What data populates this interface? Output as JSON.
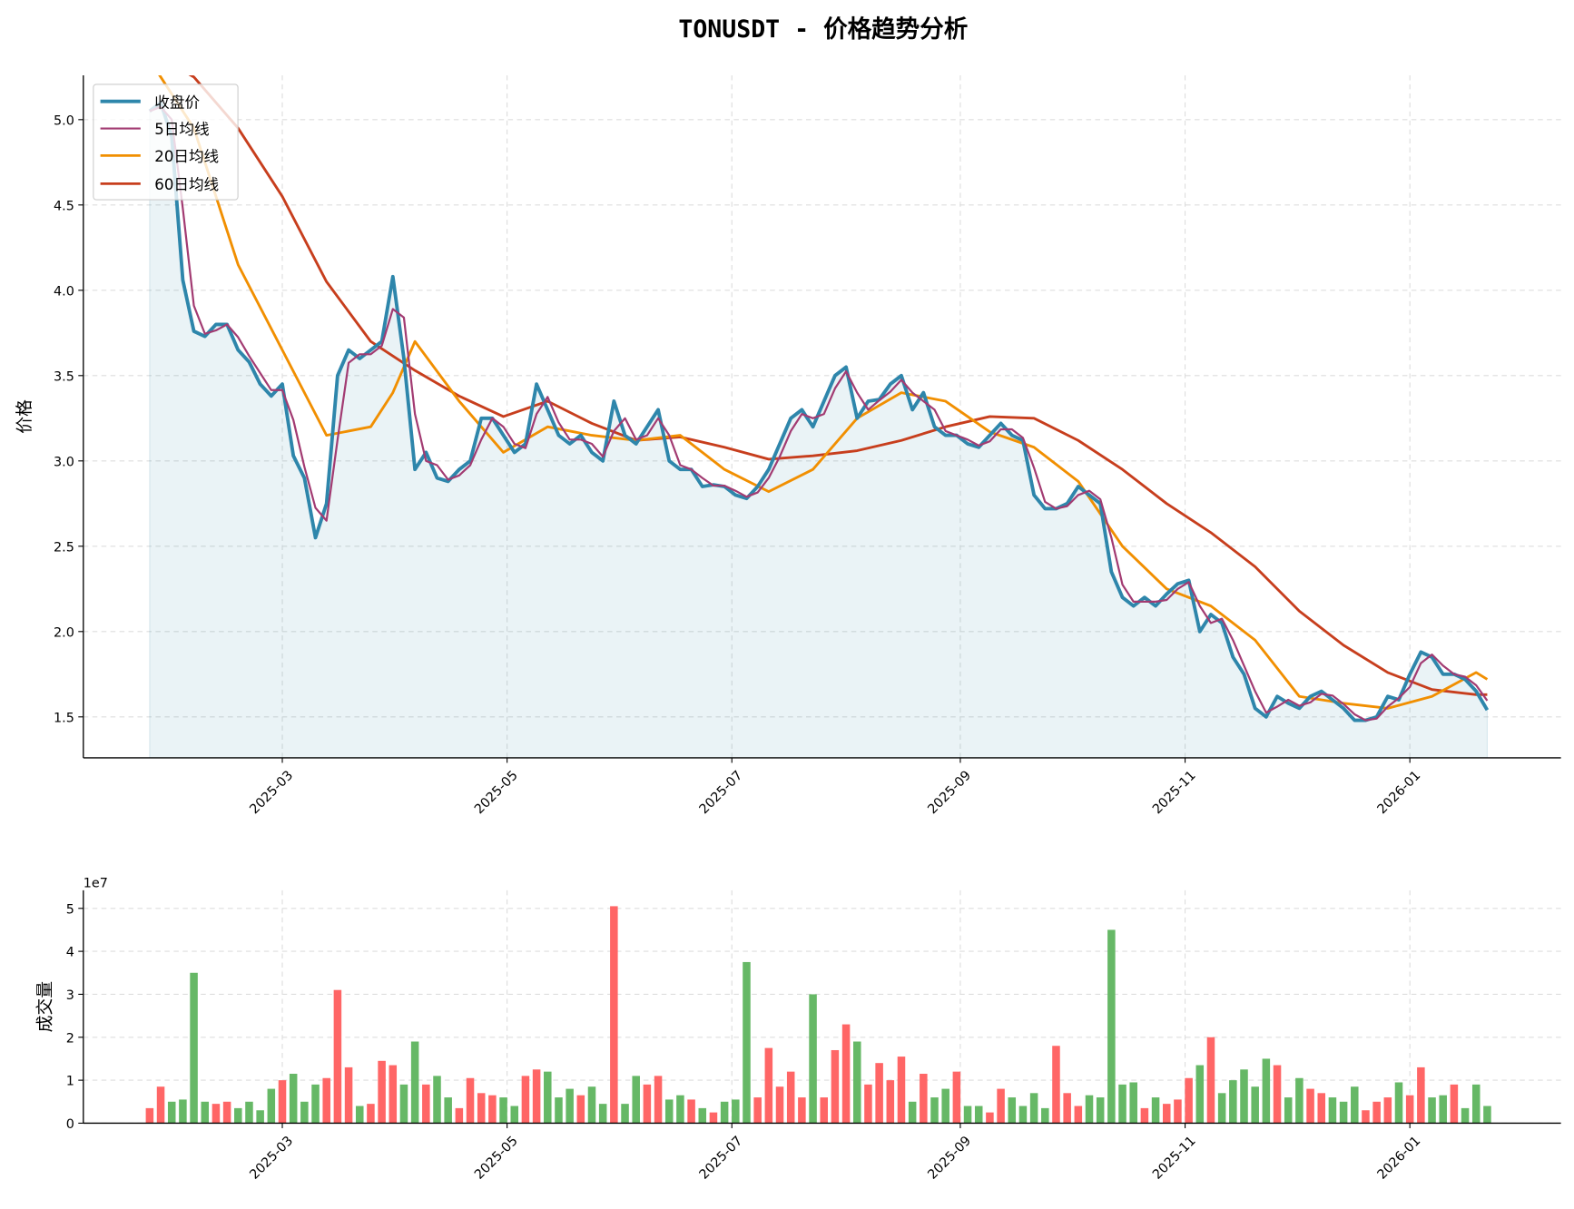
{
  "chart_data": [
    {
      "type": "line",
      "title": "TONUSDT - 价格趋势分析",
      "ylabel": "价格",
      "xlabel": "",
      "xlim": [
        "2025-01-06",
        "2026-02-11"
      ],
      "ylim": [
        1.26,
        5.26
      ],
      "grid": true,
      "legend_placement": "top-left",
      "yticks": [
        "1.5",
        "2.0",
        "2.5",
        "3.0",
        "3.5",
        "4.0",
        "4.5",
        "5.0"
      ],
      "xticks": [
        "2025-03",
        "2025-05",
        "2025-07",
        "2025-09",
        "2025-11",
        "2026-01"
      ],
      "colors": {
        "close": "#2e86ab",
        "ma5": "#a23b72",
        "ma20": "#f18f01",
        "ma60": "#c73e1d",
        "fill": "#2e86ab"
      },
      "legend": [
        "收盘价",
        "5日均线",
        "20日均线",
        "60日均线"
      ],
      "ma20": [
        [
          "2025-01-24",
          5.35
        ],
        [
          "2025-02-05",
          4.95
        ],
        [
          "2025-02-17",
          4.15
        ],
        [
          "2025-03-01",
          3.65
        ],
        [
          "2025-03-13",
          3.15
        ],
        [
          "2025-03-25",
          3.2
        ],
        [
          "2025-03-31",
          3.4
        ],
        [
          "2025-04-06",
          3.7
        ],
        [
          "2025-04-18",
          3.35
        ],
        [
          "2025-04-30",
          3.05
        ],
        [
          "2025-05-12",
          3.2
        ],
        [
          "2025-05-24",
          3.15
        ],
        [
          "2025-06-05",
          3.12
        ],
        [
          "2025-06-17",
          3.15
        ],
        [
          "2025-06-29",
          2.95
        ],
        [
          "2025-07-11",
          2.82
        ],
        [
          "2025-07-23",
          2.95
        ],
        [
          "2025-08-04",
          3.25
        ],
        [
          "2025-08-16",
          3.4
        ],
        [
          "2025-08-28",
          3.35
        ],
        [
          "2025-09-09",
          3.17
        ],
        [
          "2025-09-21",
          3.08
        ],
        [
          "2025-10-03",
          2.88
        ],
        [
          "2025-10-15",
          2.5
        ],
        [
          "2025-10-27",
          2.25
        ],
        [
          "2025-11-08",
          2.15
        ],
        [
          "2025-11-20",
          1.95
        ],
        [
          "2025-12-02",
          1.62
        ],
        [
          "2025-12-14",
          1.58
        ],
        [
          "2025-12-26",
          1.55
        ],
        [
          "2026-01-07",
          1.62
        ],
        [
          "2026-01-19",
          1.76
        ],
        [
          "2026-01-22",
          1.72
        ]
      ],
      "ma60": [
        [
          "2025-01-24",
          5.4
        ],
        [
          "2025-02-05",
          5.25
        ],
        [
          "2025-02-17",
          4.95
        ],
        [
          "2025-03-01",
          4.55
        ],
        [
          "2025-03-13",
          4.05
        ],
        [
          "2025-03-25",
          3.7
        ],
        [
          "2025-04-06",
          3.53
        ],
        [
          "2025-04-18",
          3.38
        ],
        [
          "2025-04-30",
          3.26
        ],
        [
          "2025-05-12",
          3.35
        ],
        [
          "2025-05-24",
          3.22
        ],
        [
          "2025-06-05",
          3.12
        ],
        [
          "2025-06-17",
          3.14
        ],
        [
          "2025-06-29",
          3.08
        ],
        [
          "2025-07-11",
          3.01
        ],
        [
          "2025-07-23",
          3.03
        ],
        [
          "2025-08-04",
          3.06
        ],
        [
          "2025-08-16",
          3.12
        ],
        [
          "2025-08-28",
          3.2
        ],
        [
          "2025-09-09",
          3.26
        ],
        [
          "2025-09-21",
          3.25
        ],
        [
          "2025-10-03",
          3.12
        ],
        [
          "2025-10-15",
          2.95
        ],
        [
          "2025-10-27",
          2.75
        ],
        [
          "2025-11-08",
          2.58
        ],
        [
          "2025-11-20",
          2.38
        ],
        [
          "2025-12-02",
          2.12
        ],
        [
          "2025-12-14",
          1.92
        ],
        [
          "2025-12-26",
          1.76
        ],
        [
          "2026-01-07",
          1.66
        ],
        [
          "2026-01-19",
          1.63
        ],
        [
          "2026-01-22",
          1.63
        ]
      ]
    },
    {
      "type": "bar",
      "ylabel": "成交量",
      "offset_label": "1e7",
      "ylim": [
        0,
        5.42
      ],
      "yticks": [
        "0",
        "1",
        "2",
        "3",
        "4",
        "5"
      ],
      "grid": true,
      "colors": {
        "up": "#ff6666",
        "down": "#66b866"
      }
    }
  ],
  "daily": [
    {
      "date": "2025-01-24",
      "close": 5.05,
      "volume": 0.35
    },
    {
      "date": "2025-01-27",
      "close": 5.1,
      "volume": 0.85
    },
    {
      "date": "2025-01-30",
      "close": 4.9,
      "volume": 0.5
    },
    {
      "date": "2025-02-02",
      "close": 4.06,
      "volume": 0.55
    },
    {
      "date": "2025-02-05",
      "close": 3.76,
      "volume": 3.5
    },
    {
      "date": "2025-02-08",
      "close": 3.73,
      "volume": 0.5
    },
    {
      "date": "2025-02-11",
      "close": 3.8,
      "volume": 0.45
    },
    {
      "date": "2025-02-14",
      "close": 3.8,
      "volume": 0.5
    },
    {
      "date": "2025-02-17",
      "close": 3.65,
      "volume": 0.35
    },
    {
      "date": "2025-02-20",
      "close": 3.58,
      "volume": 0.5
    },
    {
      "date": "2025-02-23",
      "close": 3.45,
      "volume": 0.3
    },
    {
      "date": "2025-02-26",
      "close": 3.38,
      "volume": 0.8
    },
    {
      "date": "2025-03-01",
      "close": 3.45,
      "volume": 1.0
    },
    {
      "date": "2025-03-04",
      "close": 3.03,
      "volume": 1.15
    },
    {
      "date": "2025-03-07",
      "close": 2.9,
      "volume": 0.5
    },
    {
      "date": "2025-03-10",
      "close": 2.55,
      "volume": 0.9
    },
    {
      "date": "2025-03-13",
      "close": 2.75,
      "volume": 1.05
    },
    {
      "date": "2025-03-16",
      "close": 3.5,
      "volume": 3.1
    },
    {
      "date": "2025-03-19",
      "close": 3.65,
      "volume": 1.3
    },
    {
      "date": "2025-03-22",
      "close": 3.6,
      "volume": 0.4
    },
    {
      "date": "2025-03-25",
      "close": 3.65,
      "volume": 0.45
    },
    {
      "date": "2025-03-28",
      "close": 3.7,
      "volume": 1.45
    },
    {
      "date": "2025-03-31",
      "close": 4.08,
      "volume": 1.35
    },
    {
      "date": "2025-04-03",
      "close": 3.6,
      "volume": 0.9
    },
    {
      "date": "2025-04-06",
      "close": 2.95,
      "volume": 1.9
    },
    {
      "date": "2025-04-09",
      "close": 3.05,
      "volume": 0.9
    },
    {
      "date": "2025-04-12",
      "close": 2.9,
      "volume": 1.1
    },
    {
      "date": "2025-04-15",
      "close": 2.88,
      "volume": 0.6
    },
    {
      "date": "2025-04-18",
      "close": 2.95,
      "volume": 0.35
    },
    {
      "date": "2025-04-21",
      "close": 3.0,
      "volume": 1.05
    },
    {
      "date": "2025-04-24",
      "close": 3.25,
      "volume": 0.7
    },
    {
      "date": "2025-04-27",
      "close": 3.25,
      "volume": 0.65
    },
    {
      "date": "2025-04-30",
      "close": 3.15,
      "volume": 0.6
    },
    {
      "date": "2025-05-03",
      "close": 3.05,
      "volume": 0.4
    },
    {
      "date": "2025-05-06",
      "close": 3.1,
      "volume": 1.1
    },
    {
      "date": "2025-05-09",
      "close": 3.45,
      "volume": 1.25
    },
    {
      "date": "2025-05-12",
      "close": 3.3,
      "volume": 1.2
    },
    {
      "date": "2025-05-15",
      "close": 3.15,
      "volume": 0.6
    },
    {
      "date": "2025-05-18",
      "close": 3.1,
      "volume": 0.8
    },
    {
      "date": "2025-05-21",
      "close": 3.15,
      "volume": 0.65
    },
    {
      "date": "2025-05-24",
      "close": 3.05,
      "volume": 0.85
    },
    {
      "date": "2025-05-27",
      "close": 3.0,
      "volume": 0.45
    },
    {
      "date": "2025-05-30",
      "close": 3.35,
      "volume": 5.05
    },
    {
      "date": "2025-06-02",
      "close": 3.15,
      "volume": 0.45
    },
    {
      "date": "2025-06-05",
      "close": 3.1,
      "volume": 1.1
    },
    {
      "date": "2025-06-08",
      "close": 3.2,
      "volume": 0.9
    },
    {
      "date": "2025-06-11",
      "close": 3.3,
      "volume": 1.1
    },
    {
      "date": "2025-06-14",
      "close": 3.0,
      "volume": 0.55
    },
    {
      "date": "2025-06-17",
      "close": 2.95,
      "volume": 0.65
    },
    {
      "date": "2025-06-20",
      "close": 2.95,
      "volume": 0.55
    },
    {
      "date": "2025-06-23",
      "close": 2.85,
      "volume": 0.35
    },
    {
      "date": "2025-06-26",
      "close": 2.86,
      "volume": 0.25
    },
    {
      "date": "2025-06-29",
      "close": 2.85,
      "volume": 0.5
    },
    {
      "date": "2025-07-02",
      "close": 2.8,
      "volume": 0.55
    },
    {
      "date": "2025-07-05",
      "close": 2.78,
      "volume": 3.75
    },
    {
      "date": "2025-07-08",
      "close": 2.85,
      "volume": 0.6
    },
    {
      "date": "2025-07-11",
      "close": 2.95,
      "volume": 1.75
    },
    {
      "date": "2025-07-14",
      "close": 3.1,
      "volume": 0.85
    },
    {
      "date": "2025-07-17",
      "close": 3.25,
      "volume": 1.2
    },
    {
      "date": "2025-07-20",
      "close": 3.3,
      "volume": 0.6
    },
    {
      "date": "2025-07-23",
      "close": 3.2,
      "volume": 3.0
    },
    {
      "date": "2025-07-26",
      "close": 3.35,
      "volume": 0.6
    },
    {
      "date": "2025-07-29",
      "close": 3.5,
      "volume": 1.7
    },
    {
      "date": "2025-08-01",
      "close": 3.55,
      "volume": 2.3
    },
    {
      "date": "2025-08-04",
      "close": 3.25,
      "volume": 1.9
    },
    {
      "date": "2025-08-07",
      "close": 3.35,
      "volume": 0.9
    },
    {
      "date": "2025-08-10",
      "close": 3.36,
      "volume": 1.4
    },
    {
      "date": "2025-08-13",
      "close": 3.45,
      "volume": 1.0
    },
    {
      "date": "2025-08-16",
      "close": 3.5,
      "volume": 1.55
    },
    {
      "date": "2025-08-19",
      "close": 3.3,
      "volume": 0.5
    },
    {
      "date": "2025-08-22",
      "close": 3.4,
      "volume": 1.15
    },
    {
      "date": "2025-08-25",
      "close": 3.2,
      "volume": 0.6
    },
    {
      "date": "2025-08-28",
      "close": 3.15,
      "volume": 0.8
    },
    {
      "date": "2025-08-31",
      "close": 3.15,
      "volume": 1.2
    },
    {
      "date": "2025-09-03",
      "close": 3.1,
      "volume": 0.4
    },
    {
      "date": "2025-09-06",
      "close": 3.08,
      "volume": 0.4
    },
    {
      "date": "2025-09-09",
      "close": 3.15,
      "volume": 0.25
    },
    {
      "date": "2025-09-12",
      "close": 3.22,
      "volume": 0.8
    },
    {
      "date": "2025-09-15",
      "close": 3.15,
      "volume": 0.6
    },
    {
      "date": "2025-09-18",
      "close": 3.12,
      "volume": 0.4
    },
    {
      "date": "2025-09-21",
      "close": 2.8,
      "volume": 0.7
    },
    {
      "date": "2025-09-24",
      "close": 2.72,
      "volume": 0.35
    },
    {
      "date": "2025-09-27",
      "close": 2.72,
      "volume": 1.8
    },
    {
      "date": "2025-09-30",
      "close": 2.75,
      "volume": 0.7
    },
    {
      "date": "2025-10-03",
      "close": 2.85,
      "volume": 0.4
    },
    {
      "date": "2025-10-06",
      "close": 2.8,
      "volume": 0.65
    },
    {
      "date": "2025-10-09",
      "close": 2.75,
      "volume": 0.6
    },
    {
      "date": "2025-10-12",
      "close": 2.35,
      "volume": 4.5
    },
    {
      "date": "2025-10-15",
      "close": 2.2,
      "volume": 0.9
    },
    {
      "date": "2025-10-18",
      "close": 2.15,
      "volume": 0.95
    },
    {
      "date": "2025-10-21",
      "close": 2.2,
      "volume": 0.35
    },
    {
      "date": "2025-10-24",
      "close": 2.15,
      "volume": 0.6
    },
    {
      "date": "2025-10-27",
      "close": 2.22,
      "volume": 0.45
    },
    {
      "date": "2025-10-30",
      "close": 2.28,
      "volume": 0.55
    },
    {
      "date": "2025-11-02",
      "close": 2.3,
      "volume": 1.05
    },
    {
      "date": "2025-11-05",
      "close": 2.0,
      "volume": 1.35
    },
    {
      "date": "2025-11-08",
      "close": 2.1,
      "volume": 2.0
    },
    {
      "date": "2025-11-11",
      "close": 2.05,
      "volume": 0.7
    },
    {
      "date": "2025-11-14",
      "close": 1.85,
      "volume": 1.0
    },
    {
      "date": "2025-11-17",
      "close": 1.75,
      "volume": 1.25
    },
    {
      "date": "2025-11-20",
      "close": 1.55,
      "volume": 0.85
    },
    {
      "date": "2025-11-23",
      "close": 1.5,
      "volume": 1.5
    },
    {
      "date": "2025-11-26",
      "close": 1.62,
      "volume": 1.35
    },
    {
      "date": "2025-11-29",
      "close": 1.58,
      "volume": 0.6
    },
    {
      "date": "2025-12-02",
      "close": 1.55,
      "volume": 1.05
    },
    {
      "date": "2025-12-05",
      "close": 1.62,
      "volume": 0.8
    },
    {
      "date": "2025-12-08",
      "close": 1.65,
      "volume": 0.7
    },
    {
      "date": "2025-12-11",
      "close": 1.6,
      "volume": 0.6
    },
    {
      "date": "2025-12-14",
      "close": 1.55,
      "volume": 0.5
    },
    {
      "date": "2025-12-17",
      "close": 1.48,
      "volume": 0.85
    },
    {
      "date": "2025-12-20",
      "close": 1.48,
      "volume": 0.3
    },
    {
      "date": "2025-12-23",
      "close": 1.5,
      "volume": 0.5
    },
    {
      "date": "2025-12-26",
      "close": 1.62,
      "volume": 0.6
    },
    {
      "date": "2025-12-29",
      "close": 1.6,
      "volume": 0.95
    },
    {
      "date": "2026-01-01",
      "close": 1.75,
      "volume": 0.65
    },
    {
      "date": "2026-01-04",
      "close": 1.88,
      "volume": 1.3
    },
    {
      "date": "2026-01-07",
      "close": 1.85,
      "volume": 0.6
    },
    {
      "date": "2026-01-10",
      "close": 1.75,
      "volume": 0.65
    },
    {
      "date": "2026-01-13",
      "close": 1.75,
      "volume": 0.9
    },
    {
      "date": "2026-01-16",
      "close": 1.72,
      "volume": 0.35
    },
    {
      "date": "2026-01-19",
      "close": 1.65,
      "volume": 0.9
    },
    {
      "date": "2026-01-22",
      "close": 1.54,
      "volume": 0.4
    }
  ]
}
